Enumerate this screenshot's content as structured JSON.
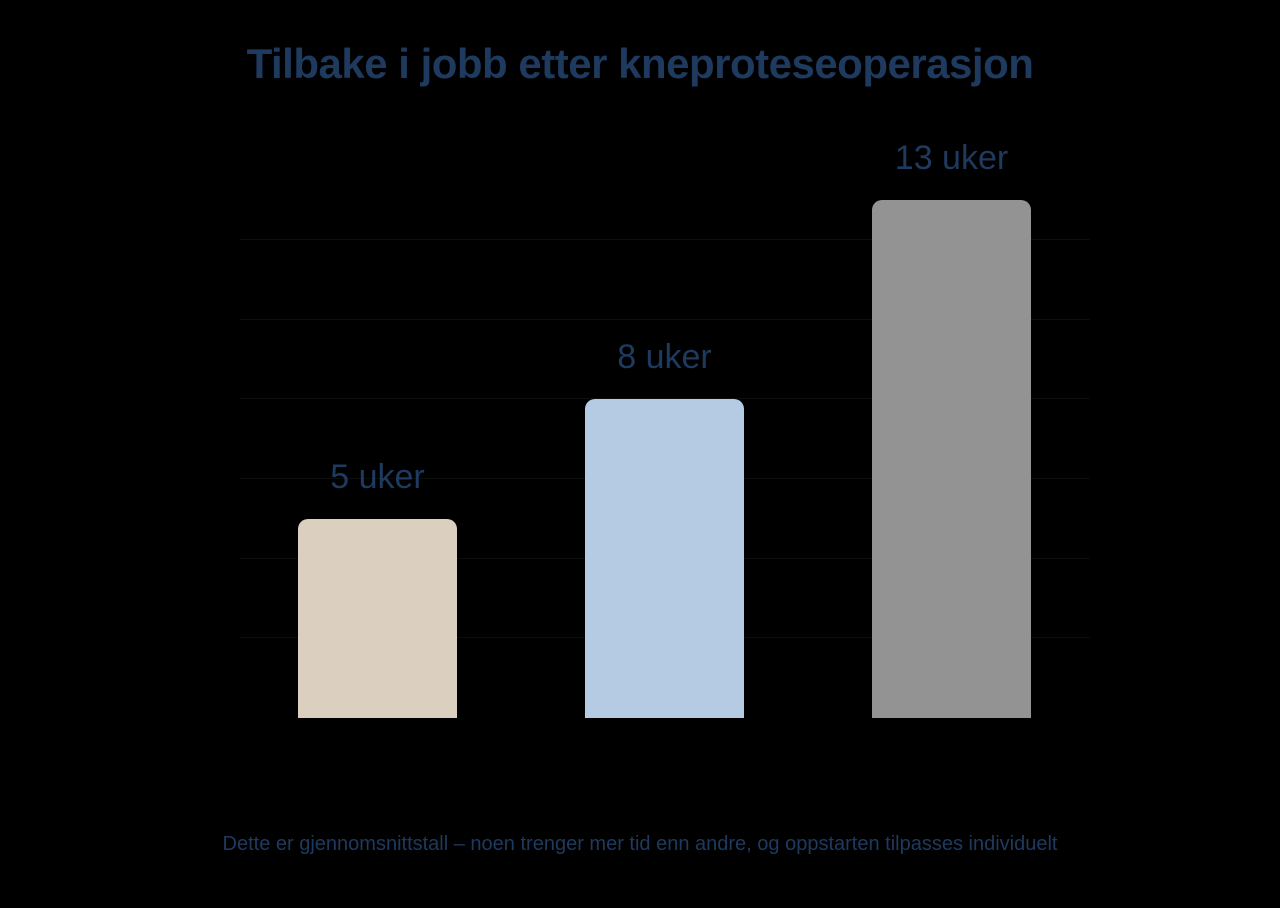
{
  "title": "Tilbake i jobb etter kneproteseoperasjon",
  "footnote": "Dette er gjennomsnittstall – noen trenger mer tid enn andre, og oppstarten tilpasses individuelt",
  "colors": {
    "background": "#000000",
    "text": "#1f3a5f",
    "gridline": "#0d0d0d"
  },
  "bars": [
    {
      "value": 5,
      "label": "5 uker",
      "color": "#dbcfbf"
    },
    {
      "value": 8,
      "label": "8 uker",
      "color": "#b5cbe3"
    },
    {
      "value": 13,
      "label": "13 uker",
      "color": "#939393"
    }
  ],
  "chart_data": {
    "type": "bar",
    "title": "Tilbake i jobb etter kneproteseoperasjon",
    "subtitle": "",
    "categories": [
      "",
      "",
      ""
    ],
    "values": [
      5,
      8,
      13
    ],
    "data_labels": [
      "5 uker",
      "8 uker",
      "13 uker"
    ],
    "colors": [
      "#dbcfbf",
      "#b5cbe3",
      "#939393"
    ],
    "xlabel": "",
    "ylabel": "",
    "unit": "uker",
    "ylim": [
      0,
      13
    ],
    "grid": true,
    "grid_step": 2,
    "legend": null,
    "annotations": [
      "Dette er gjennomsnittstall – noen trenger mer tid enn andre, og oppstarten tilpasses individuelt"
    ]
  }
}
